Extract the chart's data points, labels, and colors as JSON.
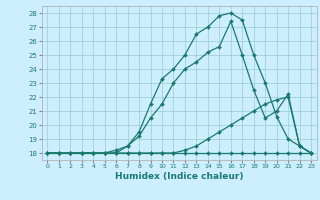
{
  "xlabel": "Humidex (Indice chaleur)",
  "bg_color": "#cceeff",
  "line_color": "#1a7a6e",
  "grid_color": "#99cccc",
  "ylim": [
    17.5,
    28.5
  ],
  "xlim": [
    -0.5,
    23.5
  ],
  "yticks": [
    18,
    19,
    20,
    21,
    22,
    23,
    24,
    25,
    26,
    27,
    28
  ],
  "xticks": [
    0,
    1,
    2,
    3,
    4,
    5,
    6,
    7,
    8,
    9,
    10,
    11,
    12,
    13,
    14,
    15,
    16,
    17,
    18,
    19,
    20,
    21,
    22,
    23
  ],
  "line1_x": [
    0,
    1,
    2,
    3,
    4,
    5,
    6,
    7,
    8,
    9,
    10,
    11,
    12,
    13,
    14,
    15,
    16,
    17,
    18,
    19,
    20,
    21,
    22,
    23
  ],
  "line1_y": [
    18,
    18,
    18,
    18,
    18,
    18,
    18,
    18,
    18,
    18,
    18,
    18,
    18,
    18,
    18,
    18,
    18,
    18,
    18,
    18,
    18,
    18,
    18,
    18
  ],
  "line2_x": [
    0,
    1,
    2,
    3,
    4,
    5,
    6,
    7,
    8,
    9,
    10,
    11,
    12,
    13,
    14,
    15,
    16,
    17,
    18,
    19,
    20,
    21,
    22,
    23
  ],
  "line2_y": [
    18,
    18,
    18,
    18,
    18,
    18,
    18,
    18,
    18,
    18,
    18,
    18,
    18.2,
    18.5,
    19.0,
    19.5,
    20.0,
    20.5,
    21.0,
    21.5,
    21.8,
    22.0,
    18.5,
    18
  ],
  "line3_x": [
    0,
    1,
    2,
    3,
    4,
    5,
    6,
    7,
    8,
    9,
    10,
    11,
    12,
    13,
    14,
    15,
    16,
    17,
    18,
    19,
    20,
    21,
    22,
    23
  ],
  "line3_y": [
    18,
    18,
    18,
    18,
    18,
    18,
    18,
    18.5,
    19.2,
    20.5,
    21.5,
    23.0,
    24.0,
    24.5,
    25.2,
    25.6,
    27.4,
    25.0,
    22.5,
    20.5,
    21.0,
    22.2,
    18.5,
    18
  ],
  "line4_x": [
    0,
    1,
    2,
    3,
    4,
    5,
    6,
    7,
    8,
    9,
    10,
    11,
    12,
    13,
    14,
    15,
    16,
    17,
    18,
    19,
    20,
    21,
    22,
    23
  ],
  "line4_y": [
    18,
    18,
    18,
    18,
    18,
    18,
    18.2,
    18.5,
    19.5,
    21.5,
    23.3,
    24.0,
    25.0,
    26.5,
    27.0,
    27.8,
    28.0,
    27.5,
    25.0,
    23.0,
    20.6,
    19.0,
    18.5,
    18
  ]
}
